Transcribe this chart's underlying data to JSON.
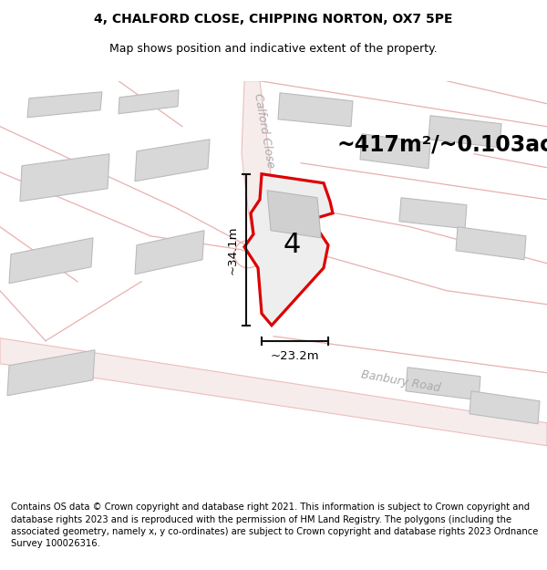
{
  "title_line1": "4, CHALFORD CLOSE, CHIPPING NORTON, OX7 5PE",
  "title_line2": "Map shows position and indicative extent of the property.",
  "footer_text": "Contains OS data © Crown copyright and database right 2021. This information is subject to Crown copyright and database rights 2023 and is reproduced with the permission of HM Land Registry. The polygons (including the associated geometry, namely x, y co-ordinates) are subject to Crown copyright and database rights 2023 Ordnance Survey 100026316.",
  "area_text": "~417m²/~0.103ac.",
  "plot_label": "4",
  "dim_height": "~34.1m",
  "dim_width": "~23.2m",
  "road_label1": "Calford Close",
  "road_label2": "Banbury Road",
  "map_bg": "#f7f4f4",
  "plot_fill": "#eeeeee",
  "plot_outline": "#dd0000",
  "building_fill": "#d8d8d8",
  "building_edge": "#bbbbbb",
  "road_line_color": "#e8b0b0",
  "road_fill_color": "#f5e8e8",
  "dim_line_color": "#111111",
  "title_fontsize": 10,
  "subtitle_fontsize": 9,
  "area_fontsize": 17,
  "plot_label_fontsize": 22,
  "dim_fontsize": 9.5,
  "road_fontsize": 9,
  "footer_fontsize": 7.2
}
